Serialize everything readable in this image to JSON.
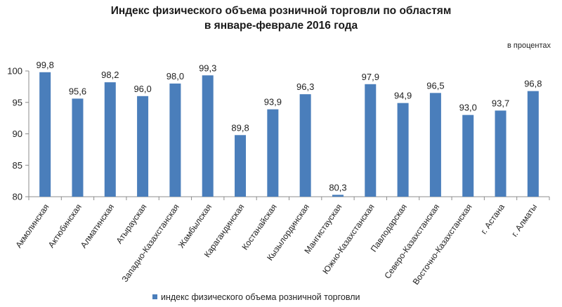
{
  "chart_data": {
    "type": "bar",
    "title": "Индекс физического объема розничной торговли по областям",
    "subtitle": "в январе-феврале 2016 года",
    "unit_label": "в процентах",
    "xlabel": "",
    "ylabel": "",
    "ylim": [
      80,
      100
    ],
    "yticks": [
      80,
      85,
      90,
      95,
      100
    ],
    "grid": false,
    "legend_position": "bottom",
    "categories": [
      "Акмолинская",
      "Актюбинская",
      "Алматинская",
      "Атырауская",
      "Западно-Казахстанская",
      "Жамбылская",
      "Карагандинская",
      "Костанайская",
      "Кызылординская",
      "Мангистауская",
      "Южно-Казахстанская",
      "Павлодарская",
      "Северо-Казахстанская",
      "Восточно-Казахстанская",
      "г. Астана",
      "г. Алматы"
    ],
    "series": [
      {
        "name": "индекс физического объема розничной торговли",
        "color": "#4a7ebb",
        "values": [
          99.8,
          95.6,
          98.2,
          96.0,
          98.0,
          99.3,
          89.8,
          93.9,
          96.3,
          80.3,
          97.9,
          94.9,
          96.5,
          93.0,
          93.7,
          96.8
        ],
        "labels": [
          "99,8",
          "95,6",
          "98,2",
          "96,0",
          "98,0",
          "99,3",
          "89,8",
          "93,9",
          "96,3",
          "80,3",
          "97,9",
          "94,9",
          "96,5",
          "93,0",
          "93,7",
          "96,8"
        ]
      }
    ]
  }
}
